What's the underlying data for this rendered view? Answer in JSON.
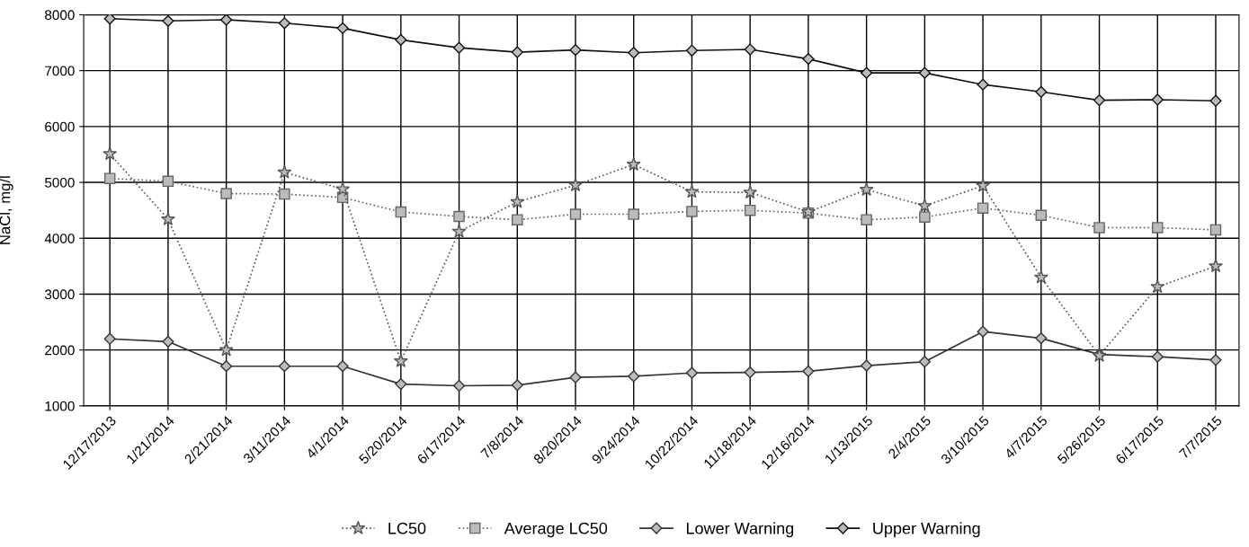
{
  "chart_data": {
    "type": "line",
    "ylabel": "NaCl, mg/l",
    "categories": [
      "12/17/2013",
      "1/21/2014",
      "2/21/2014",
      "3/11/2014",
      "4/1/2014",
      "5/20/2014",
      "6/17/2014",
      "7/8/2014",
      "8/20/2014",
      "9/24/2014",
      "10/22/2014",
      "11/18/2014",
      "12/16/2014",
      "1/13/2015",
      "2/4/2015",
      "3/10/2015",
      "4/7/2015",
      "5/26/2015",
      "6/17/2015",
      "7/7/2015"
    ],
    "series": [
      {
        "name": "LC50",
        "color": "#555555",
        "marker": "star",
        "line_style": "dotted",
        "values": [
          5510,
          4340,
          2000,
          5180,
          4880,
          1800,
          4120,
          4650,
          4950,
          5320,
          4830,
          4820,
          4470,
          4870,
          4580,
          4940,
          3300,
          1900,
          3130,
          3500
        ]
      },
      {
        "name": "Average LC50",
        "color": "#666666",
        "marker": "square",
        "line_style": "dotted",
        "values": [
          5070,
          5020,
          4800,
          4790,
          4730,
          4470,
          4390,
          4330,
          4430,
          4430,
          4480,
          4500,
          4450,
          4330,
          4380,
          4540,
          4410,
          4190,
          4190,
          4150
        ]
      },
      {
        "name": "Lower Warning",
        "color": "#333333",
        "marker": "diamond",
        "line_style": "solid",
        "values": [
          2200,
          2150,
          1710,
          1710,
          1710,
          1390,
          1360,
          1370,
          1510,
          1530,
          1590,
          1600,
          1620,
          1720,
          1790,
          2330,
          2210,
          1920,
          1880,
          1820
        ]
      },
      {
        "name": "Upper Warning",
        "color": "#111111",
        "marker": "diamond",
        "line_style": "solid",
        "values": [
          7930,
          7890,
          7910,
          7850,
          7760,
          7550,
          7410,
          7330,
          7370,
          7320,
          7360,
          7380,
          7210,
          6960,
          6960,
          6750,
          6620,
          6470,
          6480,
          6460
        ]
      }
    ],
    "ylim": [
      1000,
      8000
    ],
    "yticks": [
      1000,
      2000,
      3000,
      4000,
      5000,
      6000,
      7000,
      8000
    ],
    "grid": true,
    "legend": "bottom"
  }
}
